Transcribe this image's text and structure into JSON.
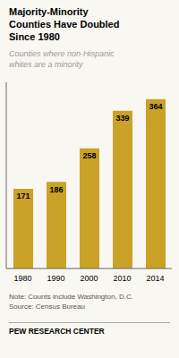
{
  "chart_data": {
    "type": "bar",
    "title": "Majority-Minority\nCounties Have Doubled\nSince 1980",
    "subtitle": "Counties where non-Hispanic\nwhites are a minority",
    "annotations": [
      "Note: Counts include Washington, D.C.\nSource: Census Bureau",
      "PEW RESEARCH CENTER"
    ],
    "categories": [
      "1980",
      "1990",
      "2000",
      "2010",
      "2014"
    ],
    "values": [
      171,
      186,
      258,
      339,
      364
    ],
    "color": "#C9A227",
    "ylim": [
      0,
      400
    ],
    "data_labels": true,
    "tick_labels": "x",
    "grid": false
  }
}
